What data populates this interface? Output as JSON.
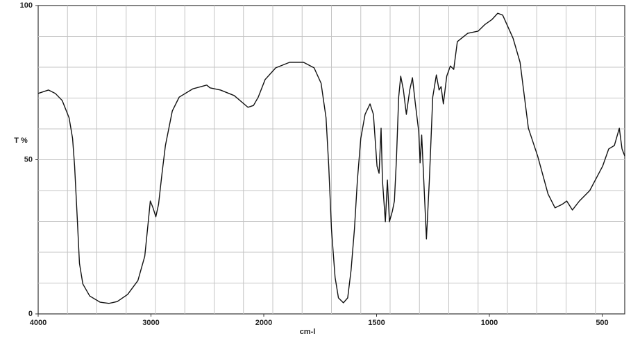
{
  "chart_data": {
    "type": "line",
    "xlabel": "cm-l",
    "ylabel": "T %",
    "xlim": [
      4000,
      400
    ],
    "x_expand_below": 2000,
    "xticks": [
      4000,
      3000,
      2000,
      1500,
      1000,
      500
    ],
    "ylim": [
      0,
      100
    ],
    "yticks": [
      0,
      50,
      100
    ],
    "grid": true,
    "color": "#111111",
    "x": [
      4000,
      3909,
      3848,
      3787,
      3726,
      3695,
      3677,
      3652,
      3634,
      3604,
      3543,
      3451,
      3372,
      3299,
      3207,
      3116,
      3055,
      3024,
      3006,
      2982,
      2957,
      2933,
      2902,
      2872,
      2811,
      2750,
      2628,
      2506,
      2476,
      2384,
      2262,
      2140,
      2091,
      2049,
      1994,
      1947,
      1885,
      1824,
      1777,
      1746,
      1724,
      1712,
      1700,
      1684,
      1669,
      1647,
      1628,
      1613,
      1598,
      1585,
      1570,
      1551,
      1529,
      1514,
      1498,
      1489,
      1480,
      1474,
      1461,
      1452,
      1443,
      1430,
      1421,
      1412,
      1402,
      1393,
      1381,
      1368,
      1353,
      1341,
      1328,
      1313,
      1307,
      1300,
      1288,
      1279,
      1266,
      1251,
      1235,
      1223,
      1214,
      1204,
      1189,
      1173,
      1158,
      1142,
      1096,
      1050,
      1019,
      988,
      963,
      941,
      895,
      864,
      827,
      786,
      740,
      709,
      678,
      657,
      632,
      601,
      555,
      498,
      471,
      446,
      424,
      412,
      400
    ],
    "values": [
      71.5,
      72.6,
      71.5,
      69.2,
      63.6,
      56.9,
      47.9,
      29.9,
      16.4,
      9.7,
      5.8,
      3.8,
      3.4,
      4.0,
      6.3,
      10.8,
      18.7,
      29.9,
      36.6,
      34.4,
      31.5,
      35.5,
      45.6,
      54.6,
      65.8,
      70.3,
      73.0,
      74.2,
      73.3,
      72.6,
      70.8,
      67.0,
      67.6,
      70.3,
      76.0,
      79.8,
      81.6,
      81.6,
      79.8,
      74.8,
      63.6,
      47.9,
      27.6,
      11.9,
      5.2,
      3.6,
      5.2,
      14.2,
      27.6,
      43.4,
      56.9,
      64.7,
      68.1,
      64.7,
      47.9,
      45.6,
      60.2,
      43.4,
      29.9,
      43.4,
      29.9,
      33.3,
      36.6,
      50.1,
      70.3,
      77.1,
      72.6,
      64.7,
      72.6,
      76.6,
      68.1,
      59.1,
      49.0,
      58.0,
      38.9,
      24.3,
      43.4,
      70.3,
      77.5,
      72.6,
      73.7,
      68.1,
      77.1,
      80.4,
      79.3,
      88.3,
      91.0,
      91.7,
      93.9,
      95.5,
      97.5,
      96.9,
      89.4,
      81.6,
      60.2,
      51.2,
      38.9,
      34.4,
      35.5,
      36.6,
      33.7,
      36.6,
      40.0,
      47.9,
      53.5,
      54.6,
      60.2,
      53.5,
      51.2
    ]
  }
}
